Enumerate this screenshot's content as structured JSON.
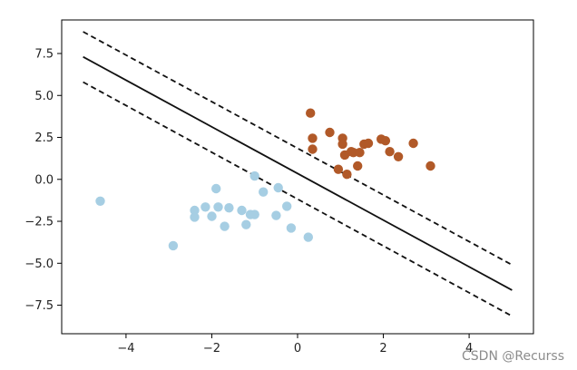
{
  "watermark": "CSDN @Recurss",
  "colors": {
    "class_a": "#a6cee3",
    "class_b": "#b15928",
    "boundary": "#111111",
    "axes": "#000000"
  },
  "chart_data": {
    "type": "scatter",
    "title": "",
    "xlabel": "",
    "ylabel": "",
    "xlim": [
      -5.5,
      5.5
    ],
    "ylim": [
      -9.2,
      9.5
    ],
    "grid": false,
    "xticks": [
      -4,
      -2,
      0,
      2,
      4
    ],
    "xtick_labels": [
      "−4",
      "−2",
      "0",
      "2",
      "4"
    ],
    "yticks": [
      7.5,
      5.0,
      2.5,
      0.0,
      -2.5,
      -5.0,
      -7.5
    ],
    "ytick_labels": [
      "7.5",
      "5.0",
      "2.5",
      "0.0",
      "−2.5",
      "−5.0",
      "−7.5"
    ],
    "series": [
      {
        "color": "#a6cee3",
        "x": [
          -4.6,
          -2.9,
          -2.4,
          -2.4,
          -2.15,
          -2.0,
          -1.9,
          -1.85,
          -1.7,
          -1.6,
          -1.3,
          -1.2,
          -1.1,
          -1.0,
          -1.0,
          -0.8,
          -0.5,
          -0.45,
          -0.25,
          -0.15,
          0.25
        ],
        "y": [
          -1.3,
          -3.95,
          -1.85,
          -2.25,
          -1.65,
          -2.2,
          -0.55,
          -1.65,
          -2.8,
          -1.7,
          -1.85,
          -2.7,
          -2.1,
          0.2,
          -2.1,
          -0.75,
          -2.15,
          -0.5,
          -1.6,
          -2.9,
          -3.45
        ]
      },
      {
        "color": "#b15928",
        "x": [
          0.3,
          0.35,
          0.35,
          0.75,
          0.95,
          1.05,
          1.05,
          1.1,
          1.15,
          1.25,
          1.3,
          1.4,
          1.45,
          1.55,
          1.65,
          1.95,
          2.05,
          2.15,
          2.35,
          2.7,
          3.1
        ],
        "y": [
          3.95,
          2.45,
          1.8,
          2.8,
          0.6,
          2.45,
          2.1,
          1.45,
          0.3,
          1.65,
          1.6,
          0.8,
          1.6,
          2.1,
          2.15,
          2.4,
          2.3,
          1.65,
          1.35,
          2.15,
          0.8
        ]
      }
    ],
    "lines": [
      {
        "style": "solid",
        "x": [
          -5.0,
          5.0
        ],
        "y": [
          7.3,
          -6.6
        ]
      },
      {
        "style": "dashed",
        "x": [
          -5.0,
          5.0
        ],
        "y": [
          8.8,
          -5.1
        ]
      },
      {
        "style": "dashed",
        "x": [
          -5.0,
          5.0
        ],
        "y": [
          5.8,
          -8.15
        ]
      }
    ]
  }
}
